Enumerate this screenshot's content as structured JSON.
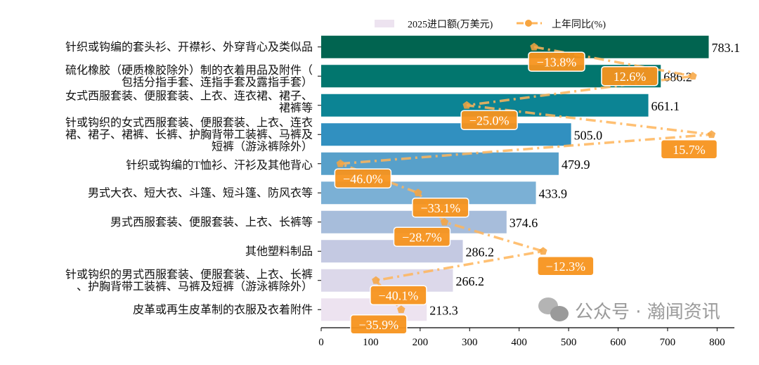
{
  "chart_data": {
    "type": "bar",
    "orientation": "horizontal",
    "categories": [
      "针织或钩编的套头衫、开襟衫、外穿背心及类似品",
      "硫化橡胶（硬质橡胶除外）制的衣着用品及附件（\n包括分指手套、连指手套及露指手套）",
      "女式西服套装、便服套装、上衣、连衣裙、裙子、\n裙裤等",
      "针或钩织的女式西服套装、便服套装、上衣、连衣\n裙、裙子、裙裤、长裤、护胸背带工装裤、马裤及\n短裤（游泳裤除外）",
      "针织或钩编的T恤衫、汗衫及其他背心",
      "男式大衣、短大衣、斗篷、短斗篷、防风衣等",
      "男式西服套装、便服套装、上衣、长裤等",
      "其他塑料制品",
      "针或钩织的男式西服套装、便服套装、上衣、长裤\n、护胸背带工装裤、马裤及短裤（游泳裤除外）",
      "皮革或再生皮革制的衣服及衣着附件"
    ],
    "series": [
      {
        "name": "2025进口额(万美元)",
        "type": "bar",
        "values": [
          783.1,
          686.2,
          661.1,
          505.0,
          479.9,
          433.9,
          374.6,
          286.2,
          266.2,
          213.3
        ],
        "value_labels": [
          "783.1",
          "686.2",
          "661.1",
          "505.0",
          "479.9",
          "433.9",
          "374.6",
          "286.2",
          "266.2",
          "213.3"
        ]
      },
      {
        "name": "上年同比(%)",
        "type": "line",
        "values": [
          -13.8,
          12.6,
          -25.0,
          15.7,
          -46.0,
          -33.1,
          -28.7,
          -12.3,
          -40.1,
          -35.9
        ],
        "value_labels": [
          "−13.8%",
          "12.6%",
          "−25.0%",
          "15.7%",
          "−46.0%",
          "−33.1%",
          "−28.7%",
          "−12.3%",
          "−40.1%",
          "−35.9%"
        ]
      }
    ],
    "xlim": [
      0,
      835
    ],
    "secondary_xlim": [
      -49.2,
      19.5
    ],
    "xticks": [
      "0",
      "100",
      "200",
      "300",
      "400",
      "500",
      "600",
      "700",
      "800"
    ],
    "xlabel": "",
    "ylabel": "",
    "grid": false,
    "legend_placement": "top-center",
    "bar_colors": [
      "#016450",
      "#02766e",
      "#0c8494",
      "#3190c0",
      "#57a0ca",
      "#7bb0d5",
      "#a7bddb",
      "#c4c9e2",
      "#dcd8ea",
      "#ede3f0"
    ],
    "line_color": "#ffb55a",
    "annotation_color": "#f7931e"
  },
  "watermark": "公众号 · 瀚闻资讯"
}
